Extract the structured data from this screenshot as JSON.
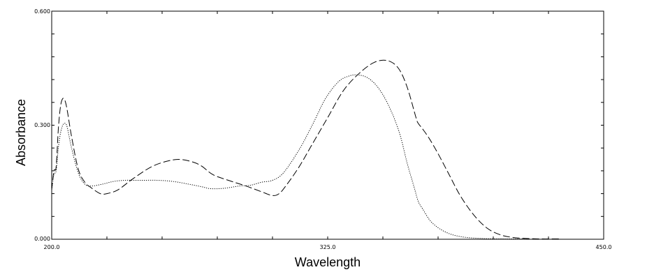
{
  "chart_data": {
    "type": "line",
    "title": "",
    "xlabel": "Wavelength",
    "ylabel": "Absorbance",
    "xlim": [
      200,
      450
    ],
    "ylim": [
      0,
      0.6
    ],
    "x_ticks": [
      "200.0",
      "325.0",
      "450.0"
    ],
    "y_ticks": [
      "0.000",
      "0.300",
      "0.600"
    ],
    "grid": false,
    "series": [
      {
        "style": "long-dash",
        "color": "#000000",
        "x": [
          200,
          201,
          202,
          203,
          204,
          205,
          206,
          207,
          209,
          212,
          215,
          218,
          222,
          225,
          230,
          237,
          245,
          252,
          258,
          264,
          268,
          273,
          280,
          288,
          295,
          300,
          303,
          306,
          312,
          318,
          325,
          332,
          339,
          346,
          352,
          357,
          361,
          365,
          366,
          368,
          371,
          375,
          380,
          385,
          391,
          397,
          403,
          410,
          420,
          430
        ],
        "y": [
          0.13,
          0.18,
          0.19,
          0.29,
          0.35,
          0.37,
          0.365,
          0.34,
          0.27,
          0.185,
          0.15,
          0.135,
          0.12,
          0.12,
          0.13,
          0.16,
          0.19,
          0.205,
          0.21,
          0.203,
          0.192,
          0.17,
          0.155,
          0.14,
          0.125,
          0.115,
          0.12,
          0.14,
          0.19,
          0.25,
          0.32,
          0.39,
          0.435,
          0.465,
          0.47,
          0.45,
          0.4,
          0.32,
          0.305,
          0.29,
          0.265,
          0.225,
          0.17,
          0.115,
          0.065,
          0.03,
          0.012,
          0.004,
          0.001,
          0.001
        ]
      },
      {
        "style": "dotted",
        "color": "#000000",
        "x": [
          200,
          201,
          202,
          203,
          204,
          205,
          206,
          207,
          209,
          212,
          215,
          218,
          223,
          228,
          233,
          240,
          248,
          255,
          262,
          268,
          272,
          278,
          285,
          290,
          295,
          300,
          305,
          312,
          318,
          324,
          330,
          335,
          339,
          343,
          347,
          351,
          355,
          358,
          361,
          364,
          366,
          368,
          372,
          378,
          385,
          395,
          405,
          415
        ],
        "y": [
          0.13,
          0.17,
          0.18,
          0.24,
          0.28,
          0.3,
          0.305,
          0.295,
          0.24,
          0.175,
          0.145,
          0.14,
          0.145,
          0.152,
          0.155,
          0.155,
          0.155,
          0.152,
          0.145,
          0.138,
          0.133,
          0.134,
          0.14,
          0.142,
          0.15,
          0.155,
          0.175,
          0.235,
          0.3,
          0.37,
          0.415,
          0.43,
          0.432,
          0.425,
          0.405,
          0.37,
          0.32,
          0.27,
          0.2,
          0.14,
          0.1,
          0.08,
          0.045,
          0.02,
          0.007,
          0.002,
          0.001,
          0.001
        ]
      }
    ]
  }
}
